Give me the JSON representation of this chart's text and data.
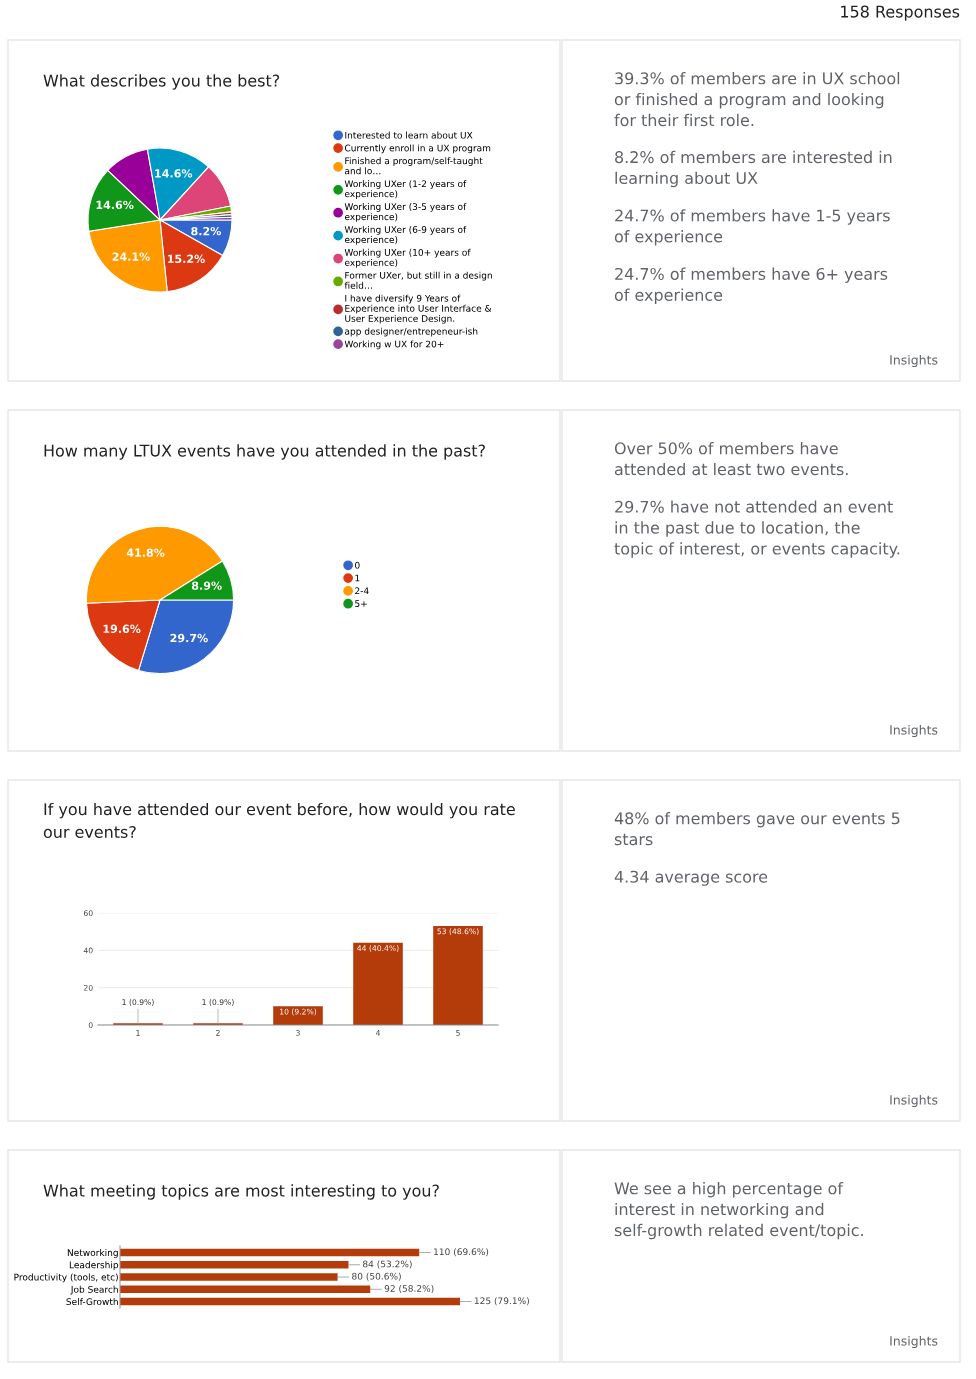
{
  "chart_data": [
    {
      "type": "pie",
      "title": "What describes you the best?",
      "categories": [
        "Interested to learn about UX",
        "Currently enroll in a UX program",
        "Finished a program/self-taught and lo…",
        "Working UXer (1-2 years of experience)",
        "Working UXer (3-5 years of experience)",
        "Working UXer (6-9 years of experience)",
        "Working UXer (10+ years of experience)",
        "Former UXer, but still in a design field…",
        "I have diversify 9 Years of Experience into User Interface & User Experience Design.",
        "app designer/entrepeneur-ish",
        "Working w UX for 20+"
      ],
      "values": [
        8.2,
        15.2,
        24.1,
        14.6,
        10.1,
        14.6,
        10.1,
        1.3,
        0.6,
        0.6,
        0.6
      ],
      "value_labels": [
        "8.2%",
        "15.2%",
        "24.1%",
        "14.6%",
        null,
        "14.6%",
        null,
        null,
        null,
        null,
        null
      ],
      "colors": [
        "#3366cc",
        "#dc3912",
        "#ff9900",
        "#109618",
        "#990099",
        "#0099c6",
        "#dd4477",
        "#66aa00",
        "#b82e2e",
        "#316395",
        "#994499"
      ],
      "legend": "right",
      "annotations": [
        "158 Responses"
      ]
    },
    {
      "type": "other",
      "annotations": [
        "39.3% of members are in UX school or finished a program and looking for their first role.",
        "8.2% of members are interested in learning about UX",
        "24.7% of members have 1-5 years of experience",
        "24.7% of members have 6+ years of experience",
        "Insights"
      ]
    },
    {
      "type": "pie",
      "title": "How many LTUX events have you attended in the past?",
      "categories": [
        "0",
        "1",
        "2-4",
        "5+"
      ],
      "values": [
        29.7,
        19.6,
        41.8,
        8.9
      ],
      "value_labels": [
        "29.7%",
        "19.6%",
        "41.8%",
        "8.9%"
      ],
      "colors": [
        "#3366cc",
        "#dc3912",
        "#ff9900",
        "#109618"
      ],
      "legend": "right"
    },
    {
      "type": "other",
      "annotations": [
        "Over 50% of members have attended at least two events.",
        "29.7% have not attended an event in the past due to location, the topic of interest, or events capacity.",
        "Insights"
      ]
    },
    {
      "type": "bar",
      "title": "If you have attended our event before, how would you rate our events?",
      "categories": [
        "1",
        "2",
        "3",
        "4",
        "5"
      ],
      "values": [
        1,
        1,
        10,
        44,
        53
      ],
      "value_labels": [
        "1 (0.9%)",
        "1 (0.9%)",
        "10 (9.2%)",
        "44 (40.4%)",
        "53 (48.6%)"
      ],
      "color": "#b33c0a",
      "ylim": [
        0,
        60
      ],
      "yticks": [
        0,
        20,
        40,
        60
      ],
      "grid": "y"
    },
    {
      "type": "other",
      "annotations": [
        "48% of members gave our events 5 stars",
        "4.34 average score",
        "Insights"
      ]
    },
    {
      "type": "bar",
      "orientation": "horizontal",
      "title": "What meeting topics are most interesting to you?",
      "categories": [
        "Networking",
        "Leadership",
        "Productivity (tools, etc)",
        "Job Search",
        "Self-Growth"
      ],
      "values": [
        110,
        84,
        80,
        92,
        125
      ],
      "value_labels": [
        "110 (69.6%)",
        "84 (53.2%)",
        "80 (50.6%)",
        "92 (58.2%)",
        "125 (79.1%)"
      ],
      "color": "#b33c0a",
      "tick_labels": "y"
    },
    {
      "type": "other",
      "annotations": [
        "We see a high percentage of interest in networking and self-growth related event/topic.",
        "Insights"
      ]
    }
  ]
}
